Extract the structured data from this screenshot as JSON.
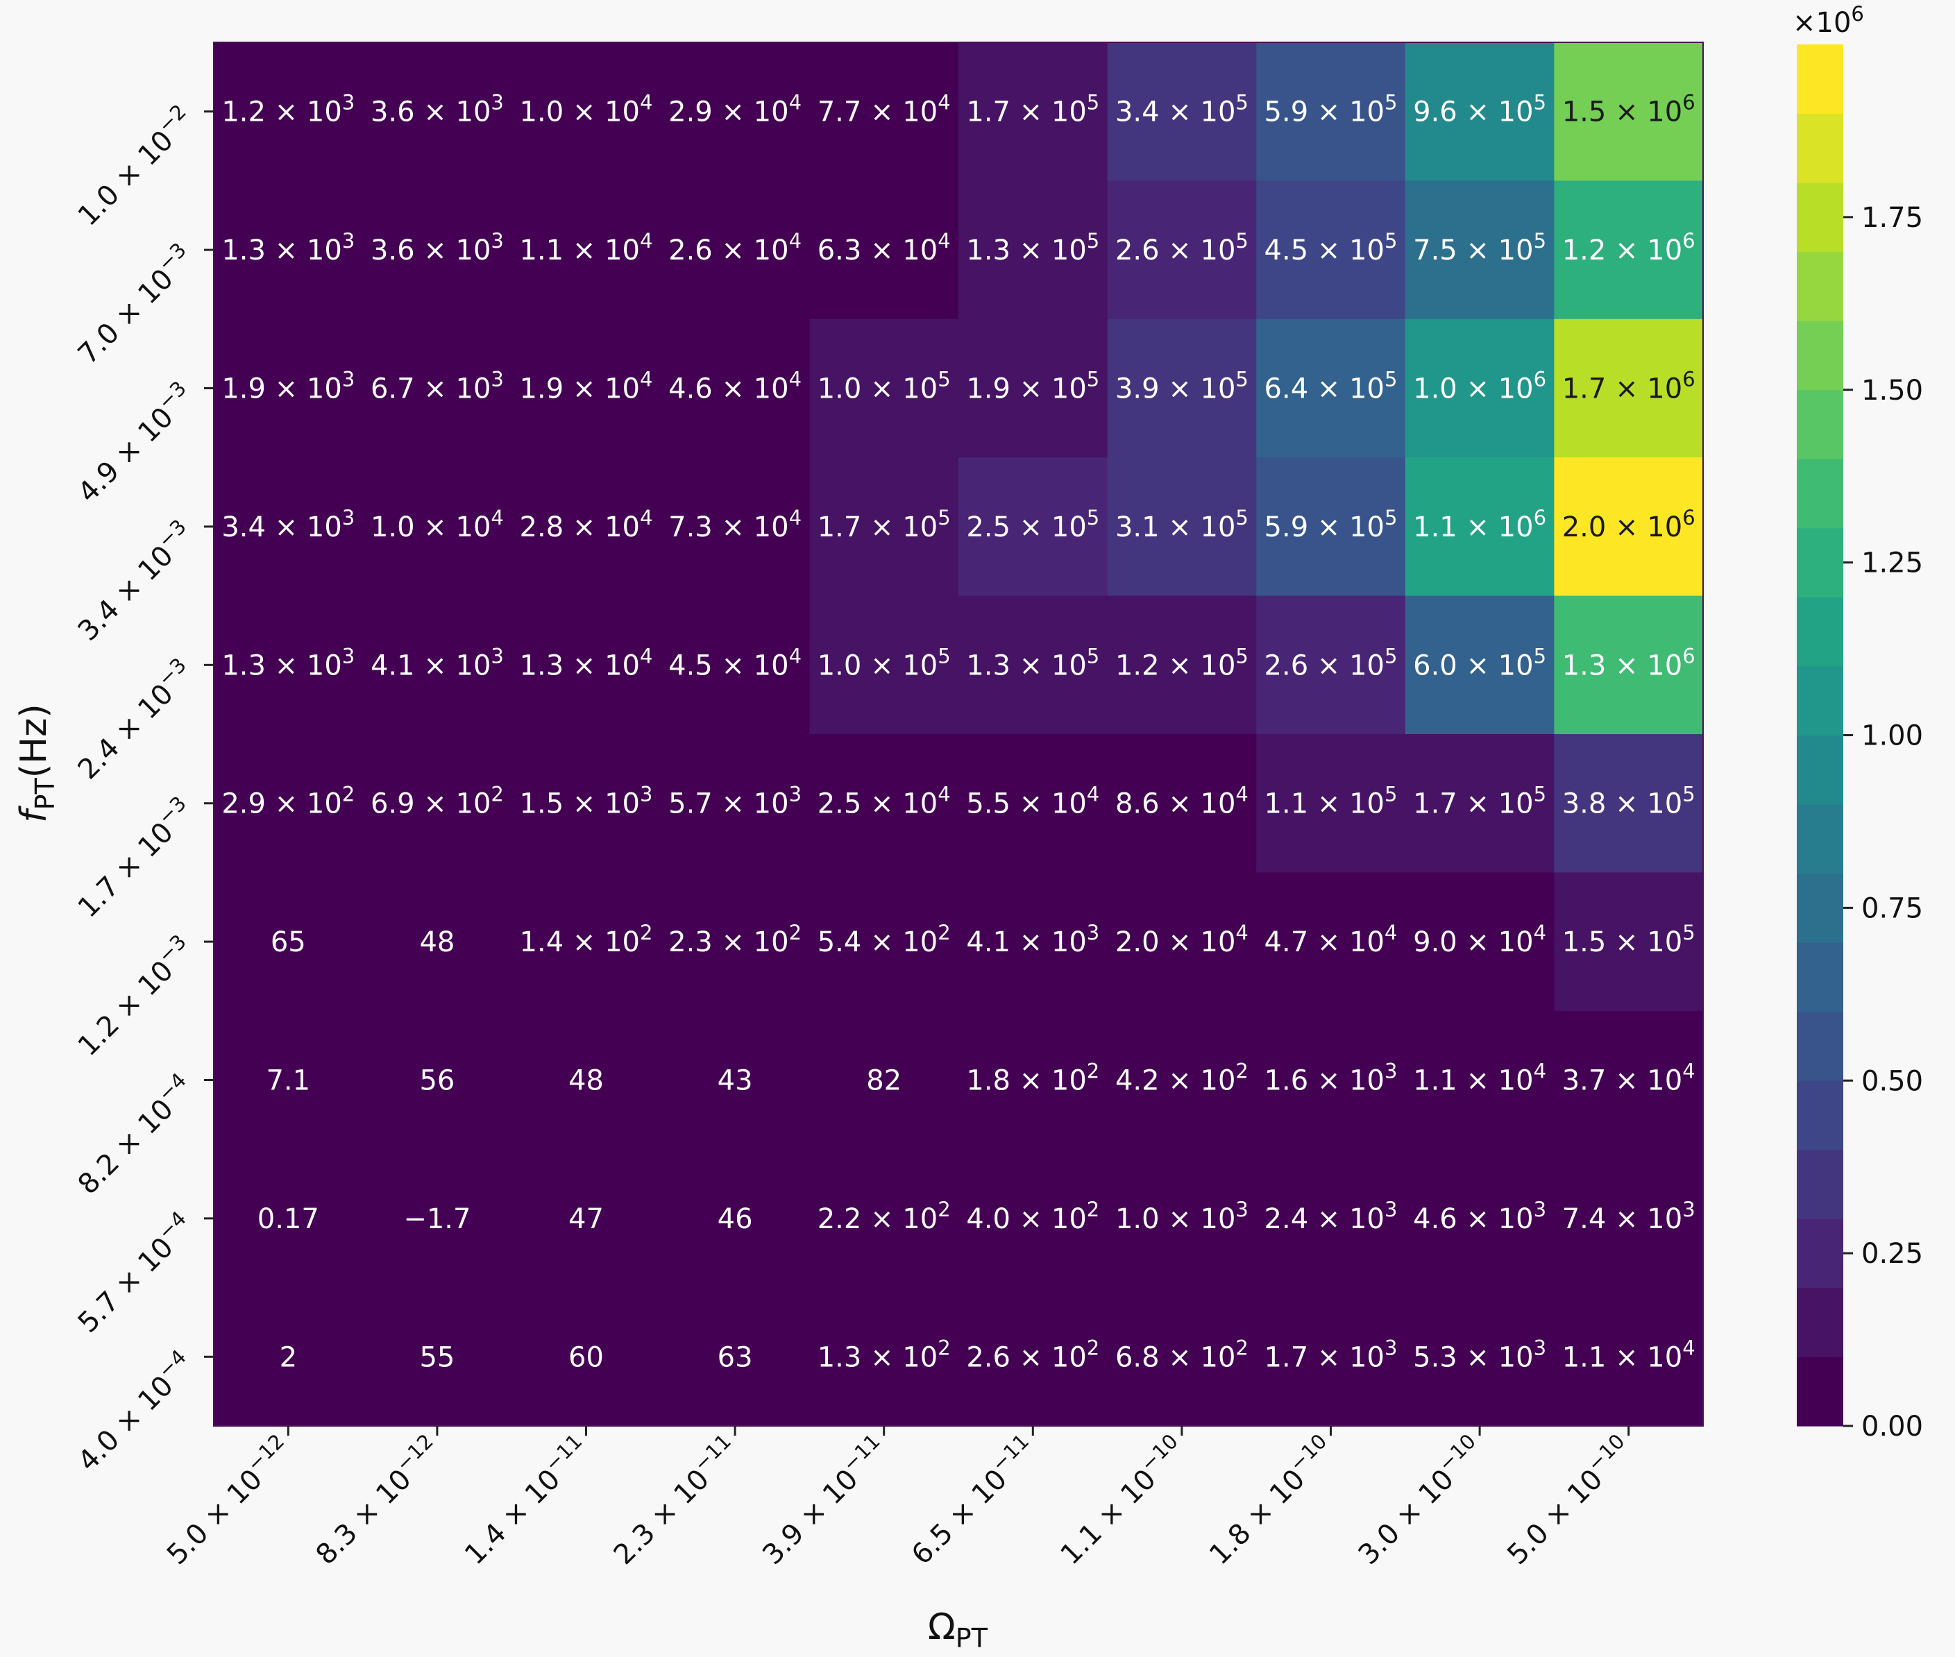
{
  "chart_data": {
    "type": "heatmap",
    "xlabel": "Ω_PT",
    "ylabel": "f_PT(Hz)",
    "x_ticks": [
      {
        "m": "5.0",
        "e": "−12"
      },
      {
        "m": "8.3",
        "e": "−12"
      },
      {
        "m": "1.4",
        "e": "−11"
      },
      {
        "m": "2.3",
        "e": "−11"
      },
      {
        "m": "3.9",
        "e": "−11"
      },
      {
        "m": "6.5",
        "e": "−11"
      },
      {
        "m": "1.1",
        "e": "−10"
      },
      {
        "m": "1.8",
        "e": "−10"
      },
      {
        "m": "3.0",
        "e": "−10"
      },
      {
        "m": "5.0",
        "e": "−10"
      }
    ],
    "y_ticks": [
      {
        "m": "1.0",
        "e": "−2"
      },
      {
        "m": "7.0",
        "e": "−3"
      },
      {
        "m": "4.9",
        "e": "−3"
      },
      {
        "m": "3.4",
        "e": "−3"
      },
      {
        "m": "2.4",
        "e": "−3"
      },
      {
        "m": "1.7",
        "e": "−3"
      },
      {
        "m": "1.2",
        "e": "−3"
      },
      {
        "m": "8.2",
        "e": "−4"
      },
      {
        "m": "5.7",
        "e": "−4"
      },
      {
        "m": "4.0",
        "e": "−4"
      }
    ],
    "cells": [
      [
        {
          "m": "1.2",
          "e": "3"
        },
        {
          "m": "3.6",
          "e": "3"
        },
        {
          "m": "1.0",
          "e": "4"
        },
        {
          "m": "2.9",
          "e": "4"
        },
        {
          "m": "7.7",
          "e": "4"
        },
        {
          "m": "1.7",
          "e": "5"
        },
        {
          "m": "3.4",
          "e": "5"
        },
        {
          "m": "5.9",
          "e": "5"
        },
        {
          "m": "9.6",
          "e": "5"
        },
        {
          "m": "1.5",
          "e": "6"
        }
      ],
      [
        {
          "m": "1.3",
          "e": "3"
        },
        {
          "m": "3.6",
          "e": "3"
        },
        {
          "m": "1.1",
          "e": "4"
        },
        {
          "m": "2.6",
          "e": "4"
        },
        {
          "m": "6.3",
          "e": "4"
        },
        {
          "m": "1.3",
          "e": "5"
        },
        {
          "m": "2.6",
          "e": "5"
        },
        {
          "m": "4.5",
          "e": "5"
        },
        {
          "m": "7.5",
          "e": "5"
        },
        {
          "m": "1.2",
          "e": "6"
        }
      ],
      [
        {
          "m": "1.9",
          "e": "3"
        },
        {
          "m": "6.7",
          "e": "3"
        },
        {
          "m": "1.9",
          "e": "4"
        },
        {
          "m": "4.6",
          "e": "4"
        },
        {
          "m": "1.0",
          "e": "5"
        },
        {
          "m": "1.9",
          "e": "5"
        },
        {
          "m": "3.9",
          "e": "5"
        },
        {
          "m": "6.4",
          "e": "5"
        },
        {
          "m": "1.0",
          "e": "6"
        },
        {
          "m": "1.7",
          "e": "6"
        }
      ],
      [
        {
          "m": "3.4",
          "e": "3"
        },
        {
          "m": "1.0",
          "e": "4"
        },
        {
          "m": "2.8",
          "e": "4"
        },
        {
          "m": "7.3",
          "e": "4"
        },
        {
          "m": "1.7",
          "e": "5"
        },
        {
          "m": "2.5",
          "e": "5"
        },
        {
          "m": "3.1",
          "e": "5"
        },
        {
          "m": "5.9",
          "e": "5"
        },
        {
          "m": "1.1",
          "e": "6"
        },
        {
          "m": "2.0",
          "e": "6"
        }
      ],
      [
        {
          "m": "1.3",
          "e": "3"
        },
        {
          "m": "4.1",
          "e": "3"
        },
        {
          "m": "1.3",
          "e": "4"
        },
        {
          "m": "4.5",
          "e": "4"
        },
        {
          "m": "1.0",
          "e": "5"
        },
        {
          "m": "1.3",
          "e": "5"
        },
        {
          "m": "1.2",
          "e": "5"
        },
        {
          "m": "2.6",
          "e": "5"
        },
        {
          "m": "6.0",
          "e": "5"
        },
        {
          "m": "1.3",
          "e": "6"
        }
      ],
      [
        {
          "m": "2.9",
          "e": "2"
        },
        {
          "m": "6.9",
          "e": "2"
        },
        {
          "m": "1.5",
          "e": "3"
        },
        {
          "m": "5.7",
          "e": "3"
        },
        {
          "m": "2.5",
          "e": "4"
        },
        {
          "m": "5.5",
          "e": "4"
        },
        {
          "m": "8.6",
          "e": "4"
        },
        {
          "m": "1.1",
          "e": "5"
        },
        {
          "m": "1.7",
          "e": "5"
        },
        {
          "m": "3.8",
          "e": "5"
        }
      ],
      [
        {
          "m": "65",
          "e": ""
        },
        {
          "m": "48",
          "e": ""
        },
        {
          "m": "1.4",
          "e": "2"
        },
        {
          "m": "2.3",
          "e": "2"
        },
        {
          "m": "5.4",
          "e": "2"
        },
        {
          "m": "4.1",
          "e": "3"
        },
        {
          "m": "2.0",
          "e": "4"
        },
        {
          "m": "4.7",
          "e": "4"
        },
        {
          "m": "9.0",
          "e": "4"
        },
        {
          "m": "1.5",
          "e": "5"
        }
      ],
      [
        {
          "m": "7.1",
          "e": ""
        },
        {
          "m": "56",
          "e": ""
        },
        {
          "m": "48",
          "e": ""
        },
        {
          "m": "43",
          "e": ""
        },
        {
          "m": "82",
          "e": ""
        },
        {
          "m": "1.8",
          "e": "2"
        },
        {
          "m": "4.2",
          "e": "2"
        },
        {
          "m": "1.6",
          "e": "3"
        },
        {
          "m": "1.1",
          "e": "4"
        },
        {
          "m": "3.7",
          "e": "4"
        }
      ],
      [
        {
          "m": "0.17",
          "e": ""
        },
        {
          "m": "−1.7",
          "e": ""
        },
        {
          "m": "47",
          "e": ""
        },
        {
          "m": "46",
          "e": ""
        },
        {
          "m": "2.2",
          "e": "2"
        },
        {
          "m": "4.0",
          "e": "2"
        },
        {
          "m": "1.0",
          "e": "3"
        },
        {
          "m": "2.4",
          "e": "3"
        },
        {
          "m": "4.6",
          "e": "3"
        },
        {
          "m": "7.4",
          "e": "3"
        }
      ],
      [
        {
          "m": "2",
          "e": ""
        },
        {
          "m": "55",
          "e": ""
        },
        {
          "m": "60",
          "e": ""
        },
        {
          "m": "63",
          "e": ""
        },
        {
          "m": "1.3",
          "e": "2"
        },
        {
          "m": "2.6",
          "e": "2"
        },
        {
          "m": "6.8",
          "e": "2"
        },
        {
          "m": "1.7",
          "e": "3"
        },
        {
          "m": "5.3",
          "e": "3"
        },
        {
          "m": "1.1",
          "e": "4"
        }
      ]
    ],
    "colorbar": {
      "multiplier": "×10",
      "multiplier_exp": "6",
      "range": [
        0,
        2000000
      ],
      "bins": 20,
      "ticks": [
        "0.00",
        "0.25",
        "0.50",
        "0.75",
        "1.00",
        "1.25",
        "1.50",
        "1.75"
      ],
      "tick_values": [
        0,
        250000,
        500000,
        750000,
        1000000,
        1250000,
        1500000,
        1750000
      ],
      "colormap": "viridis"
    }
  }
}
